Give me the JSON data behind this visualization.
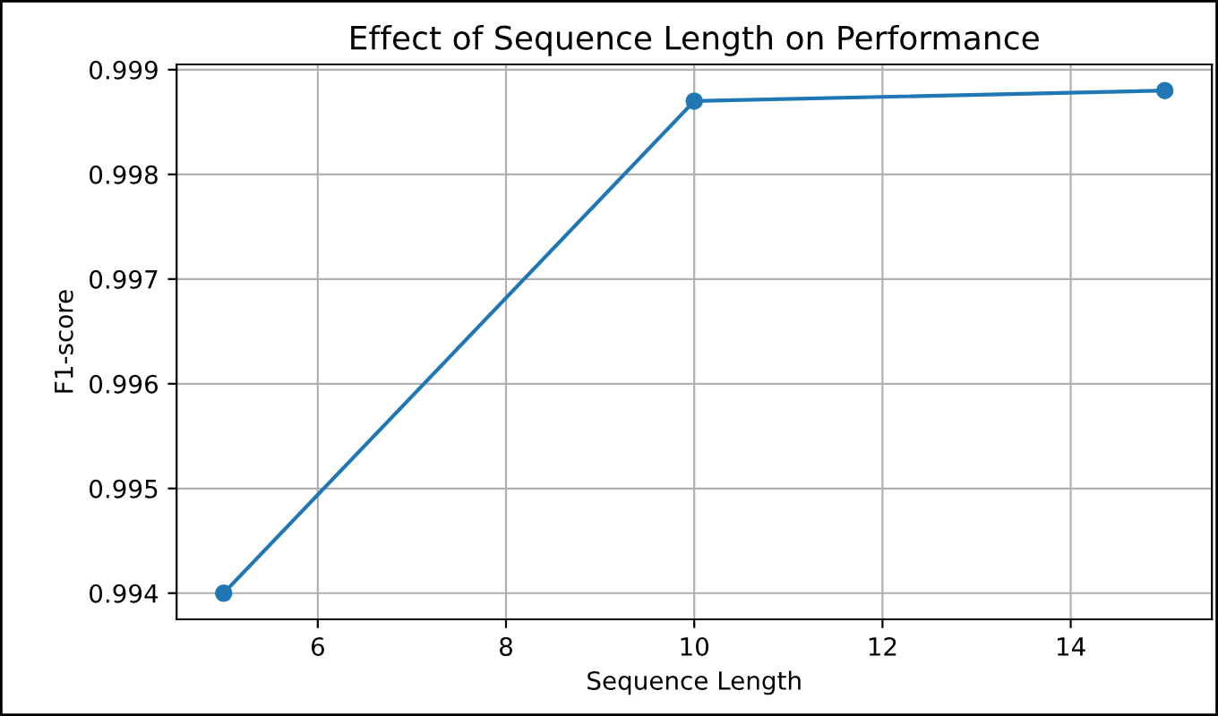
{
  "chart_data": {
    "type": "line",
    "title": "Effect of Sequence Length on Performance",
    "xlabel": "Sequence Length",
    "ylabel": "F1-score",
    "x": [
      5,
      10,
      15
    ],
    "series": [
      {
        "color": "#1f77b4",
        "values": [
          0.994,
          0.9987,
          0.9988
        ]
      }
    ],
    "xlim": [
      4.5,
      15.5
    ],
    "xticks": [
      6,
      8,
      10,
      12,
      14
    ],
    "ylim": [
      0.99375,
      0.99905
    ],
    "yticks": [
      0.994,
      0.995,
      0.996,
      0.997,
      0.998,
      0.999
    ],
    "grid": true,
    "marker": "circle",
    "line_style": "solid"
  }
}
